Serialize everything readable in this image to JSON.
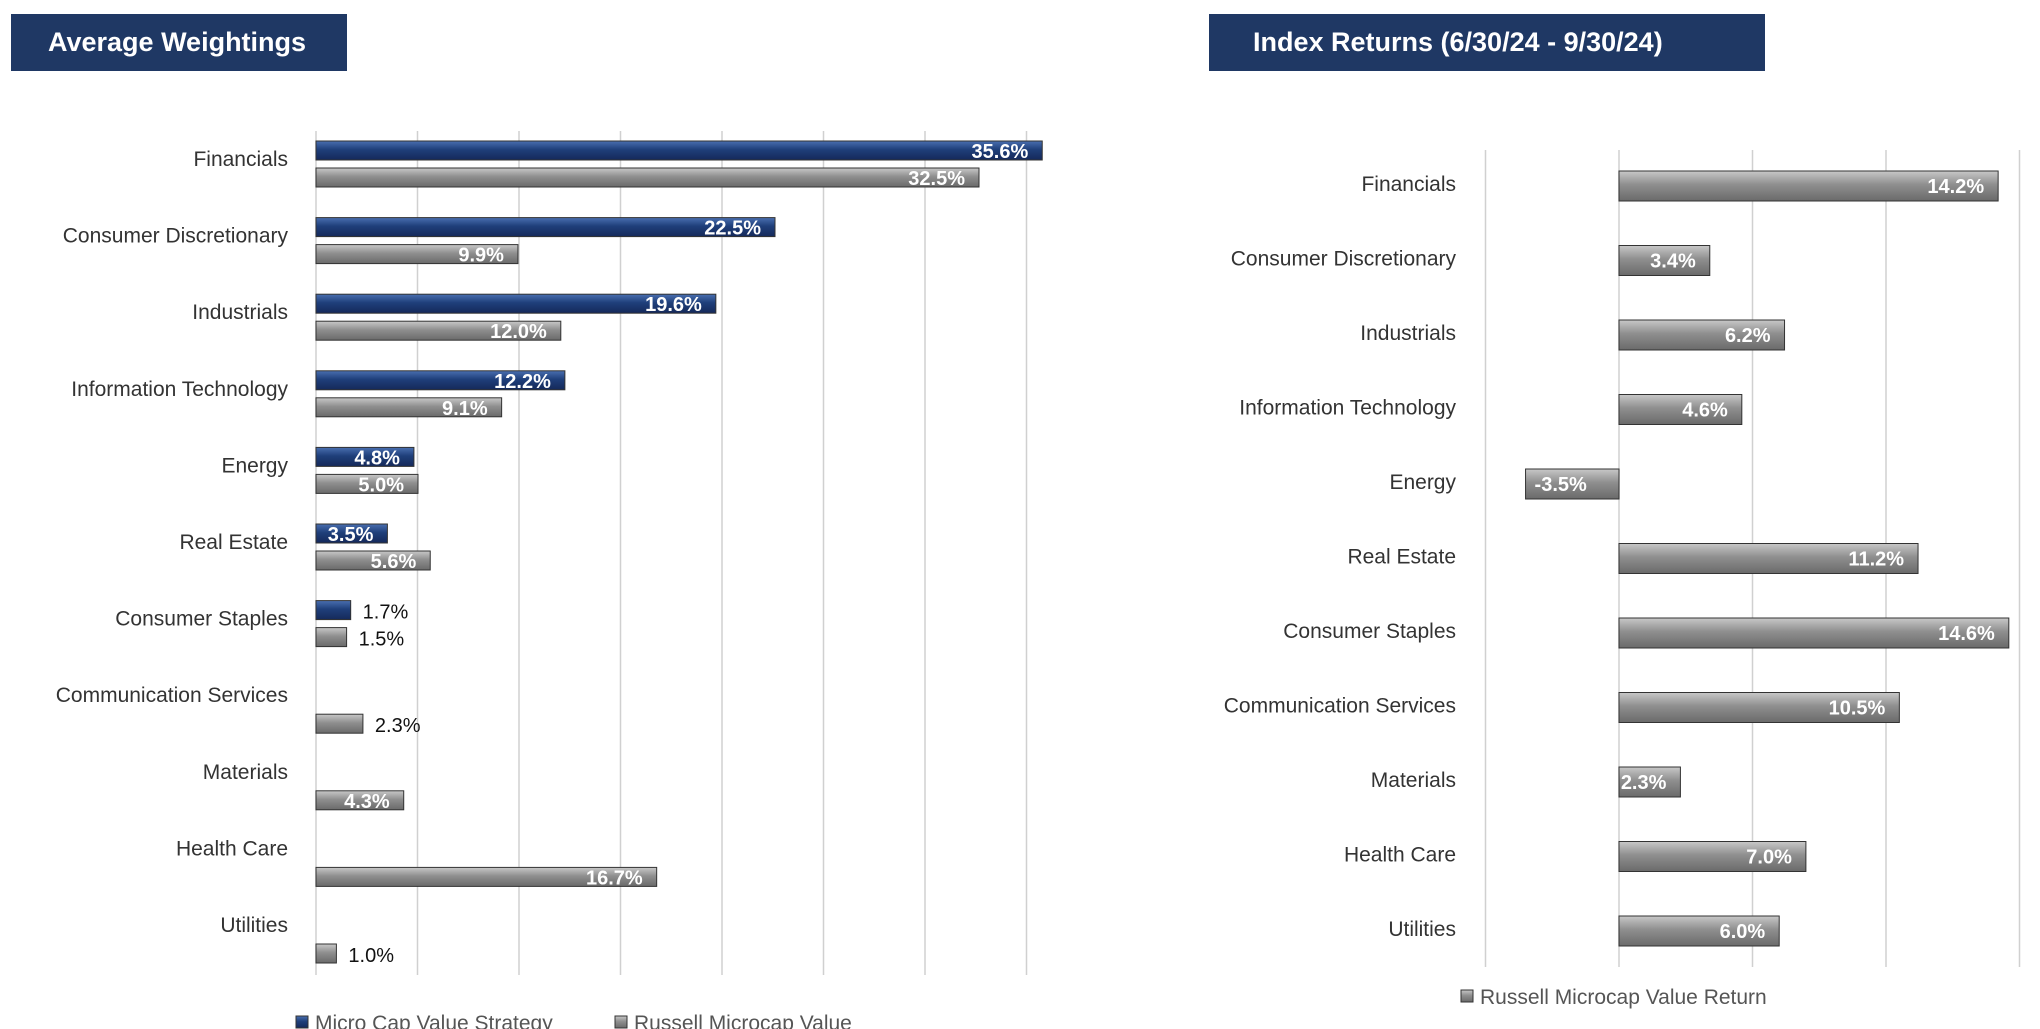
{
  "chart_data": [
    {
      "type": "bar",
      "orientation": "horizontal",
      "title": "Average Weightings",
      "categories": [
        "Financials",
        "Consumer Discretionary",
        "Industrials",
        "Information Technology",
        "Energy",
        "Real Estate",
        "Consumer Staples",
        "Communication Services",
        "Materials",
        "Health Care",
        "Utilities"
      ],
      "series": [
        {
          "name": "Micro Cap Value Strategy",
          "color": "#1f3f7a",
          "values": [
            35.6,
            22.5,
            19.6,
            12.2,
            4.8,
            3.5,
            1.7,
            null,
            null,
            null,
            null
          ],
          "labels": [
            "35.6%",
            "22.5%",
            "19.6%",
            "12.2%",
            "4.8%",
            "3.5%",
            "1.7%",
            "",
            "",
            "",
            ""
          ]
        },
        {
          "name": "Russell Microcap Value",
          "color": "#8a8a8a",
          "values": [
            32.5,
            9.9,
            12.0,
            9.1,
            5.0,
            5.6,
            1.5,
            2.3,
            4.3,
            16.7,
            1.0
          ],
          "labels": [
            "32.5%",
            "9.9%",
            "12.0%",
            "9.1%",
            "5.0%",
            "5.6%",
            "1.5%",
            "2.3%",
            "4.3%",
            "16.7%",
            "1.0%"
          ]
        }
      ],
      "xlim": [
        0,
        35
      ],
      "grid": true,
      "legend": "bottom"
    },
    {
      "type": "bar",
      "orientation": "horizontal",
      "title": "Index Returns (6/30/24 - 9/30/24)",
      "categories": [
        "Financials",
        "Consumer Discretionary",
        "Industrials",
        "Information Technology",
        "Energy",
        "Real Estate",
        "Consumer Staples",
        "Communication Services",
        "Materials",
        "Health Care",
        "Utilities"
      ],
      "series": [
        {
          "name": "Russell Microcap Value Return",
          "color": "#8a8a8a",
          "values": [
            14.2,
            3.4,
            6.2,
            4.6,
            -3.5,
            11.2,
            14.6,
            10.5,
            2.3,
            7.0,
            6.0
          ],
          "labels": [
            "14.2%",
            "3.4%",
            "6.2%",
            "4.6%",
            "-3.5%",
            "11.2%",
            "14.6%",
            "10.5%",
            "2.3%",
            "7.0%",
            "6.0%"
          ]
        }
      ],
      "xlim": [
        -5,
        15
      ],
      "grid": true,
      "legend": "bottom"
    }
  ]
}
